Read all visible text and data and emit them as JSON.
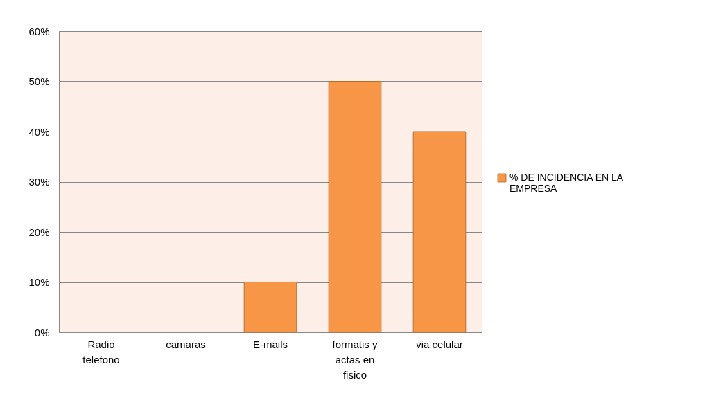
{
  "chart_data": {
    "type": "bar",
    "categories": [
      "Radio telefono",
      "camaras",
      "E-mails",
      "formatis y actas en fisico",
      "via celular"
    ],
    "series": [
      {
        "name": "% DE INCIDENCIA EN LA EMPRESA",
        "color": "#f79646",
        "values": [
          0,
          0,
          10,
          50,
          40
        ]
      }
    ],
    "ylim": [
      0,
      60
    ],
    "yticks": [
      {
        "value": 0,
        "label": "0%"
      },
      {
        "value": 10,
        "label": "10%"
      },
      {
        "value": 20,
        "label": "20%"
      },
      {
        "value": 30,
        "label": "30%"
      },
      {
        "value": 40,
        "label": "40%"
      },
      {
        "value": 50,
        "label": "50%"
      },
      {
        "value": 60,
        "label": "60%"
      }
    ],
    "grid": "y",
    "legend": "right"
  }
}
